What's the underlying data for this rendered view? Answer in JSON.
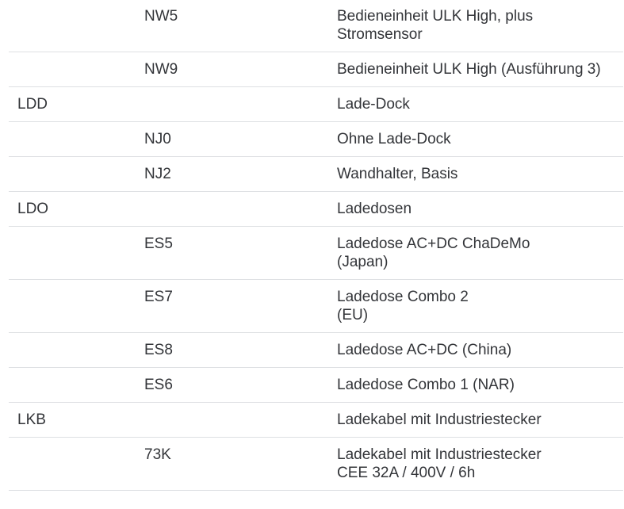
{
  "document": {
    "language": "de",
    "content_type": "vehicle-equipment-code-table",
    "colors": {
      "background": "#ffffff",
      "text": "#333539",
      "divider": "#dee0e3"
    }
  },
  "table": {
    "columns": [
      "group_code",
      "option_code",
      "description"
    ],
    "rows": [
      {
        "group": "",
        "code": "NW5",
        "description": "Bedieneinheit ULK High, plus\nStromsensor"
      },
      {
        "group": "",
        "code": "NW9",
        "description": "Bedieneinheit ULK High (Ausführung 3)"
      },
      {
        "group": "LDD",
        "code": "",
        "description": "Lade-Dock"
      },
      {
        "group": "",
        "code": "NJ0",
        "description": "Ohne Lade-Dock"
      },
      {
        "group": "",
        "code": "NJ2",
        "description": "Wandhalter, Basis"
      },
      {
        "group": "LDO",
        "code": "",
        "description": "Ladedosen"
      },
      {
        "group": "",
        "code": "ES5",
        "description": "Ladedose AC+DC ChaDeMo\n(Japan)"
      },
      {
        "group": "",
        "code": "ES7",
        "description": "Ladedose Combo 2\n(EU)"
      },
      {
        "group": "",
        "code": "ES8",
        "description": "Ladedose AC+DC (China)"
      },
      {
        "group": "",
        "code": "ES6",
        "description": "Ladedose Combo 1 (NAR)"
      },
      {
        "group": "LKB",
        "code": "",
        "description": "Ladekabel mit Industriestecker"
      },
      {
        "group": "",
        "code": "73K",
        "description": "Ladekabel mit Industriestecker\nCEE 32A / 400V / 6h"
      }
    ]
  }
}
